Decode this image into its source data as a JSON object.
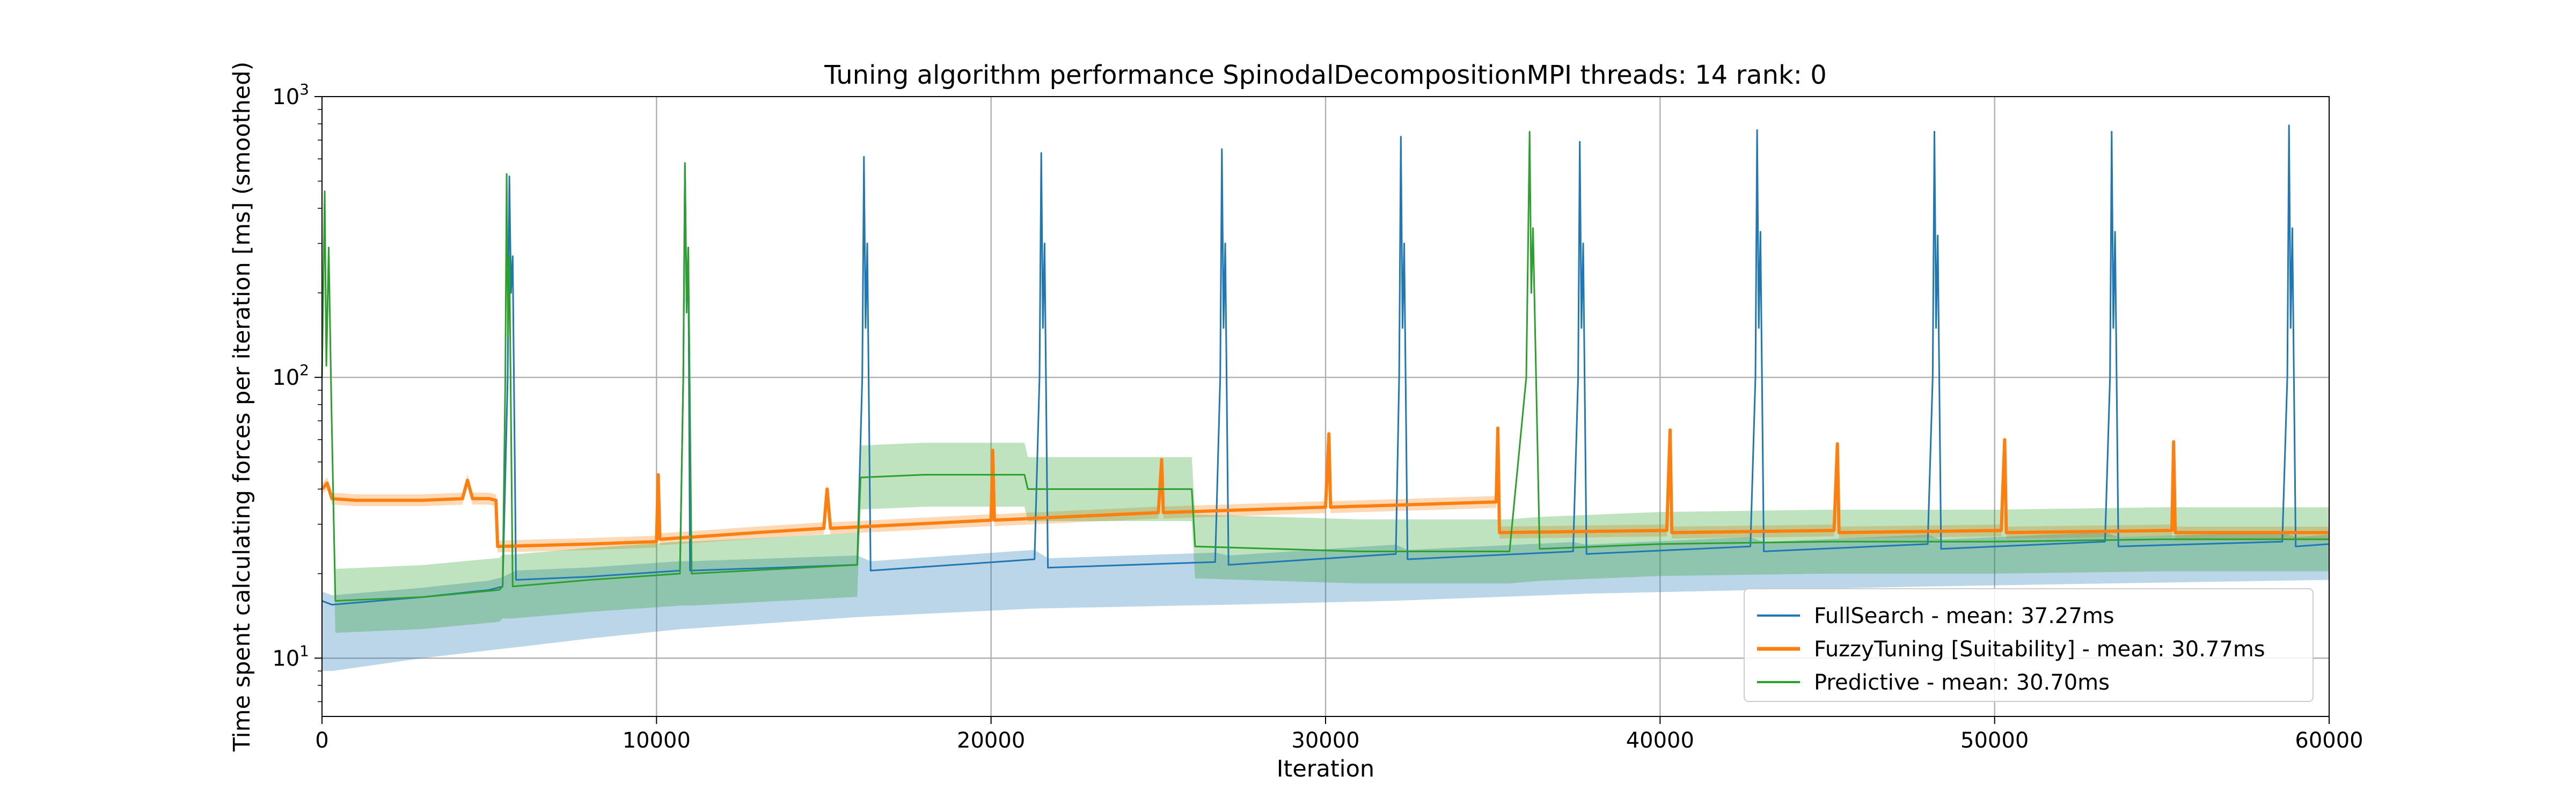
{
  "chart_data": {
    "type": "line",
    "title": "Tuning algorithm performance SpinodalDecompositionMPI threads: 14 rank: 0",
    "xlabel": "Iteration",
    "ylabel": "Time spent calculating forces per iteration [ms] (smoothed)",
    "xlim": [
      0,
      60000
    ],
    "ylim": [
      6.2,
      1000
    ],
    "yscale": "log",
    "grid": true,
    "legend_position": "lower-right",
    "x_ticks": [
      0,
      10000,
      20000,
      30000,
      40000,
      50000,
      60000
    ],
    "x_tick_labels": [
      "0",
      "10000",
      "20000",
      "30000",
      "40000",
      "50000",
      "60000"
    ],
    "y_ticks": [
      10,
      100,
      1000
    ],
    "y_tick_base": "10",
    "y_tick_exponents": [
      "1",
      "2",
      "3"
    ],
    "series": [
      {
        "name": "FullSearch - mean: 37.27ms",
        "color": "#1f77b4",
        "band_alpha": 0.3,
        "line_width": 1,
        "points": [
          [
            0,
            16
          ],
          [
            300,
            15.5
          ],
          [
            3000,
            16.5
          ],
          [
            5000,
            17.5
          ],
          [
            5400,
            18
          ],
          [
            5550,
            100
          ],
          [
            5600,
            520
          ],
          [
            5650,
            200
          ],
          [
            5700,
            270
          ],
          [
            5800,
            19
          ],
          [
            8000,
            19.5
          ],
          [
            10700,
            20.5
          ],
          [
            10800,
            100
          ],
          [
            10850,
            570
          ],
          [
            10900,
            180
          ],
          [
            10950,
            290
          ],
          [
            11000,
            20.5
          ],
          [
            16000,
            21.5
          ],
          [
            16150,
            100
          ],
          [
            16200,
            610
          ],
          [
            16250,
            150
          ],
          [
            16300,
            300
          ],
          [
            16400,
            20.5
          ],
          [
            21300,
            22.5
          ],
          [
            21450,
            100
          ],
          [
            21500,
            630
          ],
          [
            21550,
            150
          ],
          [
            21600,
            300
          ],
          [
            21700,
            21
          ],
          [
            26700,
            22
          ],
          [
            26850,
            100
          ],
          [
            26900,
            650
          ],
          [
            26950,
            150
          ],
          [
            27000,
            300
          ],
          [
            27100,
            21.5
          ],
          [
            32100,
            23.5
          ],
          [
            32200,
            100
          ],
          [
            32250,
            720
          ],
          [
            32300,
            150
          ],
          [
            32350,
            300
          ],
          [
            32450,
            22.5
          ],
          [
            37400,
            24
          ],
          [
            37550,
            100
          ],
          [
            37600,
            690
          ],
          [
            37650,
            150
          ],
          [
            37700,
            300
          ],
          [
            37800,
            23.5
          ],
          [
            42700,
            25
          ],
          [
            42850,
            100
          ],
          [
            42900,
            760
          ],
          [
            42950,
            150
          ],
          [
            43000,
            330
          ],
          [
            43100,
            24
          ],
          [
            48000,
            25.5
          ],
          [
            48150,
            100
          ],
          [
            48200,
            750
          ],
          [
            48250,
            150
          ],
          [
            48300,
            320
          ],
          [
            48400,
            24.5
          ],
          [
            53300,
            26
          ],
          [
            53450,
            100
          ],
          [
            53500,
            750
          ],
          [
            53550,
            150
          ],
          [
            53600,
            330
          ],
          [
            53700,
            25
          ],
          [
            58600,
            26
          ],
          [
            58750,
            100
          ],
          [
            58800,
            790
          ],
          [
            58850,
            150
          ],
          [
            58900,
            340
          ],
          [
            59000,
            25
          ],
          [
            60000,
            25.5
          ]
        ],
        "band": [
          [
            500,
            9
          ],
          [
            3000,
            10
          ],
          [
            6000,
            11
          ],
          [
            10000,
            12.5
          ],
          [
            16000,
            14
          ],
          [
            21000,
            15
          ],
          [
            27000,
            15.5
          ],
          [
            32000,
            16
          ],
          [
            38000,
            17
          ],
          [
            43000,
            17.5
          ],
          [
            48000,
            18
          ],
          [
            54000,
            18.5
          ],
          [
            60000,
            19
          ]
        ]
      },
      {
        "name": "FuzzyTuning [Suitability] - mean: 30.77ms",
        "color": "#ff7f0e",
        "band_alpha": 0.3,
        "line_width": 2,
        "points": [
          [
            0,
            40
          ],
          [
            150,
            42
          ],
          [
            300,
            37
          ],
          [
            1000,
            36.5
          ],
          [
            3000,
            36.5
          ],
          [
            4200,
            37
          ],
          [
            4350,
            43
          ],
          [
            4500,
            37
          ],
          [
            5000,
            37
          ],
          [
            5200,
            36.5
          ],
          [
            5250,
            25
          ],
          [
            8000,
            25.5
          ],
          [
            10000,
            26
          ],
          [
            10050,
            45
          ],
          [
            10100,
            26.5
          ],
          [
            13000,
            28
          ],
          [
            15000,
            29
          ],
          [
            15100,
            40
          ],
          [
            15200,
            29
          ],
          [
            20000,
            31
          ],
          [
            20050,
            55
          ],
          [
            20100,
            31
          ],
          [
            25000,
            33
          ],
          [
            25100,
            51
          ],
          [
            25150,
            33
          ],
          [
            30000,
            34.5
          ],
          [
            30100,
            63
          ],
          [
            30150,
            34.5
          ],
          [
            35100,
            36
          ],
          [
            35150,
            66
          ],
          [
            35200,
            28
          ],
          [
            40200,
            28.5
          ],
          [
            40300,
            65
          ],
          [
            40350,
            28
          ],
          [
            45200,
            28.5
          ],
          [
            45300,
            58
          ],
          [
            45350,
            28
          ],
          [
            50200,
            28.5
          ],
          [
            50300,
            60
          ],
          [
            50350,
            28
          ],
          [
            55300,
            28.5
          ],
          [
            55350,
            59
          ],
          [
            55400,
            28
          ],
          [
            60000,
            28
          ]
        ],
        "band": [
          [
            0,
            1.05
          ],
          [
            60000,
            1.05
          ]
        ]
      },
      {
        "name": "Predictive - mean: 30.70ms",
        "color": "#2ca02c",
        "band_alpha": 0.3,
        "line_width": 1,
        "points": [
          [
            0,
            100
          ],
          [
            80,
            460
          ],
          [
            130,
            110
          ],
          [
            200,
            290
          ],
          [
            280,
            80
          ],
          [
            400,
            16
          ],
          [
            3000,
            16.5
          ],
          [
            5300,
            17.5
          ],
          [
            5400,
            18
          ],
          [
            5480,
            100
          ],
          [
            5520,
            530
          ],
          [
            5560,
            140
          ],
          [
            5600,
            270
          ],
          [
            5700,
            18
          ],
          [
            8000,
            19
          ],
          [
            10700,
            20
          ],
          [
            10800,
            100
          ],
          [
            10850,
            580
          ],
          [
            10900,
            170
          ],
          [
            10950,
            290
          ],
          [
            11050,
            20
          ],
          [
            16000,
            21.5
          ],
          [
            16100,
            44
          ],
          [
            18000,
            45
          ],
          [
            21000,
            45
          ],
          [
            21100,
            40
          ],
          [
            26000,
            40
          ],
          [
            26100,
            25
          ],
          [
            31000,
            24
          ],
          [
            35500,
            24
          ],
          [
            36000,
            100
          ],
          [
            36100,
            750
          ],
          [
            36150,
            200
          ],
          [
            36200,
            340
          ],
          [
            36400,
            24.5
          ],
          [
            40000,
            25.5
          ],
          [
            45000,
            26
          ],
          [
            50000,
            26
          ],
          [
            55000,
            26.5
          ],
          [
            60000,
            26.5
          ]
        ],
        "band": [
          [
            0,
            1.3
          ],
          [
            60000,
            1.3
          ]
        ]
      }
    ]
  }
}
